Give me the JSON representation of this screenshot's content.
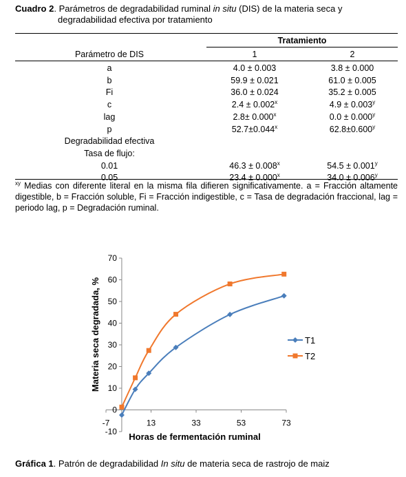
{
  "table": {
    "caption_label": "Cuadro 2",
    "caption_text_1": ". Parámetros de degradabilidad ruminal ",
    "caption_italic": "in situ",
    "caption_text_2": " (DIS) de la materia seca y",
    "caption_line2": "degradabilidad efectiva por tratamiento",
    "group_header": "Tratamiento",
    "param_header": "Parámetro de DIS",
    "col1": "1",
    "col2": "2",
    "rows": [
      {
        "param": "a",
        "v1": "4.0 ± 0.003",
        "s1": "",
        "v2": "3.8 ± 0.000",
        "s2": ""
      },
      {
        "param": "b",
        "v1": "59.9 ± 0.021",
        "s1": "",
        "v2": "61.0 ± 0.005",
        "s2": ""
      },
      {
        "param": "Fi",
        "v1": "36.0 ± 0.024",
        "s1": "",
        "v2": "35.2 ± 0.005",
        "s2": ""
      },
      {
        "param": "c",
        "v1": "2.4 ± 0.002",
        "s1": "x",
        "v2": "4.9 ± 0.003",
        "s2": "y"
      },
      {
        "param": "lag",
        "v1": "2.8± 0.000",
        "s1": "x",
        "v2": "0.0 ± 0.000",
        "s2": "y"
      },
      {
        "param": "p",
        "v1": "52.7±0.044",
        "s1": "x",
        "v2": "62.8±0.600",
        "s2": "y"
      },
      {
        "param": "Degradabilidad efectiva",
        "v1": "",
        "s1": "",
        "v2": "",
        "s2": ""
      },
      {
        "param": "Tasa de flujo:",
        "v1": "",
        "s1": "",
        "v2": "",
        "s2": ""
      },
      {
        "param": "0.01",
        "v1": "46.3 ± 0.008",
        "s1": "x",
        "v2": "54.5 ± 0.001",
        "s2": "y"
      },
      {
        "param": "0.05",
        "v1": "23.4 ± 0.000",
        "s1": "x",
        "v2": "34.0 ± 0.006",
        "s2": "y"
      }
    ],
    "footnote_sup": "xy",
    "footnote": " Medias con diferente literal en la misma fila difieren significativamente. a = Fracción altamente digestible, b = Fracción soluble, Fi = Fracción indigestible, c = Tasa de degradación fraccional, lag = periodo lag, p = Degradación ruminal."
  },
  "figure": {
    "caption_label": "Gráfica 1",
    "caption_text_1": ". Patrón de degradabilidad ",
    "caption_italic": "In situ",
    "caption_text_2": " de materia seca de rastrojo de maiz"
  },
  "chart_data": {
    "type": "line",
    "title": "",
    "xlabel": "Horas de fermentación ruminal",
    "ylabel": "Materia seca degradada, %",
    "xlim": [
      -7,
      73
    ],
    "ylim": [
      -10,
      70
    ],
    "x_ticks": [
      "-7",
      "13",
      "33",
      "53",
      "73"
    ],
    "y_ticks": [
      "-10",
      "0",
      "10",
      "20",
      "30",
      "40",
      "50",
      "60",
      "70"
    ],
    "legend_position": "right",
    "series": [
      {
        "name": "T1",
        "color": "#4a7ebb",
        "marker": "diamond",
        "x": [
          0,
          6,
          12,
          24,
          48,
          72
        ],
        "y": [
          -2.4,
          9.5,
          16.9,
          28.8,
          44.0,
          52.6
        ]
      },
      {
        "name": "T2",
        "color": "#f0782d",
        "marker": "square",
        "x": [
          0,
          6,
          12,
          24,
          48,
          72
        ],
        "y": [
          1.3,
          14.8,
          27.4,
          44.1,
          58.1,
          62.6
        ]
      }
    ]
  }
}
